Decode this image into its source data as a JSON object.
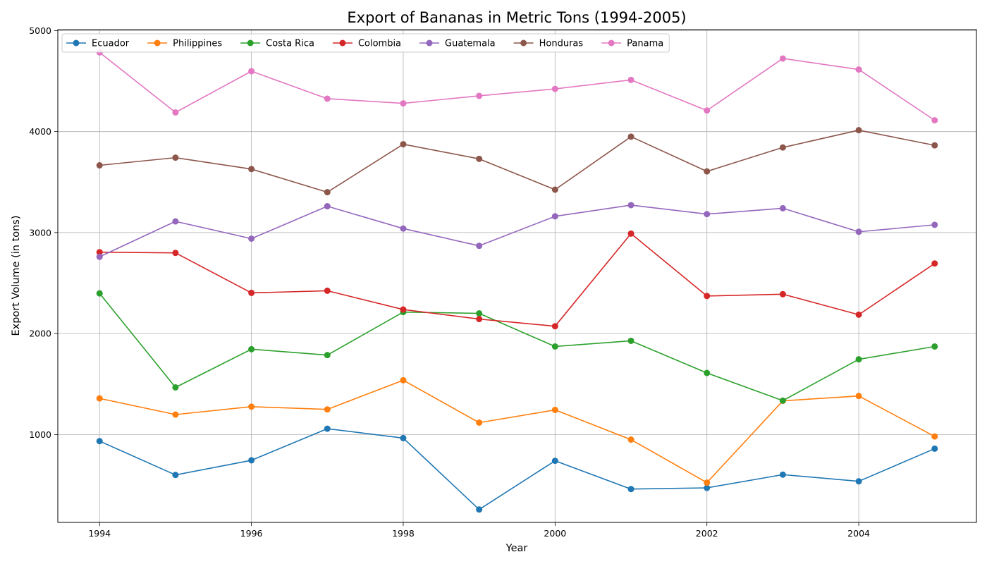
{
  "chart_data": {
    "type": "line",
    "title": "Export of Bananas in Metric Tons (1994-2005)",
    "xlabel": "Year",
    "ylabel": "Export Volume (in tons)",
    "x": [
      1994,
      1995,
      1996,
      1997,
      1998,
      1999,
      2000,
      2001,
      2002,
      2003,
      2004,
      2005
    ],
    "xlim": [
      1993.45,
      2005.55
    ],
    "ylim": [
      130,
      5010
    ],
    "xticks": [
      1994,
      1996,
      1998,
      2000,
      2002,
      2004
    ],
    "yticks": [
      1000,
      2000,
      3000,
      4000,
      5000
    ],
    "grid": true,
    "legend_position": "top-left",
    "legend_columns": 7,
    "markers": "circle",
    "series": [
      {
        "name": "Ecuador",
        "color": "#1f77b4",
        "values": [
          935,
          600,
          745,
          1058,
          965,
          258,
          740,
          460,
          472,
          603,
          537,
          860
        ]
      },
      {
        "name": "Philippines",
        "color": "#ff7f0e",
        "values": [
          1358,
          1198,
          1276,
          1249,
          1538,
          1118,
          1244,
          950,
          524,
          1334,
          1382,
          981
        ]
      },
      {
        "name": "Costa Rica",
        "color": "#2ca02c",
        "values": [
          2398,
          1467,
          1845,
          1787,
          2213,
          2200,
          1872,
          1928,
          1610,
          1336,
          1745,
          1872
        ]
      },
      {
        "name": "Colombia",
        "color": "#d62728",
        "values": [
          2806,
          2799,
          2403,
          2424,
          2238,
          2144,
          2073,
          2990,
          2372,
          2390,
          2187,
          2694
        ]
      },
      {
        "name": "Guatemala",
        "color": "#9467bd",
        "values": [
          2760,
          3111,
          2940,
          3261,
          3040,
          2869,
          3161,
          3272,
          3183,
          3241,
          3008,
          3077
        ]
      },
      {
        "name": "Honduras",
        "color": "#8c564b",
        "values": [
          3666,
          3742,
          3629,
          3400,
          3875,
          3730,
          3425,
          3950,
          3606,
          3843,
          4014,
          3864
        ]
      },
      {
        "name": "Panama",
        "color": "#e377c2",
        "values": [
          4784,
          4190,
          4598,
          4326,
          4280,
          4354,
          4423,
          4512,
          4209,
          4724,
          4615,
          4112
        ]
      }
    ]
  }
}
